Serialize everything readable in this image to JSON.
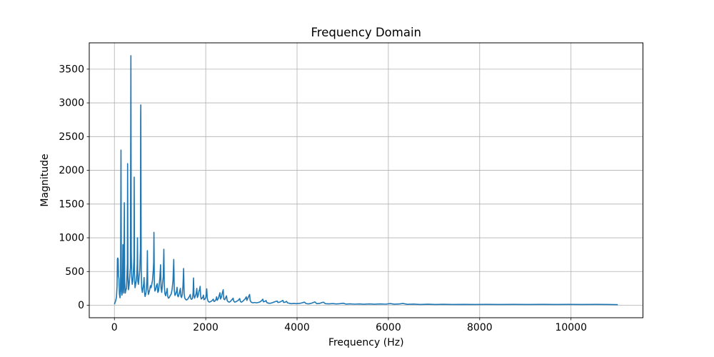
{
  "figure": {
    "title": "Frequency Domain"
  },
  "chart_data": {
    "type": "line",
    "title": "Frequency Domain",
    "xlabel": "Frequency (Hz)",
    "ylabel": "Magnitude",
    "legend": null,
    "grid": true,
    "line_color": "#1f77b4",
    "grid_color": "#b0b0b0",
    "spine_color": "#000000",
    "background_color": "#ffffff",
    "xlim": [
      -551,
      11576
    ],
    "ylim": [
      -185,
      3890
    ],
    "xticks": [
      0,
      2000,
      4000,
      6000,
      8000,
      10000
    ],
    "yticks": [
      0,
      500,
      1000,
      1500,
      2000,
      2500,
      3000,
      3500
    ],
    "x_data_range": [
      0,
      11025
    ],
    "peak_summary": [
      {
        "freq": 144,
        "magnitude": 2300
      },
      {
        "freq": 217,
        "magnitude": 1520
      },
      {
        "freq": 289,
        "magnitude": 2100
      },
      {
        "freq": 361,
        "magnitude": 3700
      },
      {
        "freq": 433,
        "magnitude": 1900
      },
      {
        "freq": 505,
        "magnitude": 1000
      },
      {
        "freq": 578,
        "magnitude": 2970
      },
      {
        "freq": 722,
        "magnitude": 810
      },
      {
        "freq": 866,
        "magnitude": 1080
      },
      {
        "freq": 1083,
        "magnitude": 830
      },
      {
        "freq": 1300,
        "magnitude": 680
      },
      {
        "freq": 1516,
        "magnitude": 545
      },
      {
        "freq": 1733,
        "magnitude": 405
      }
    ],
    "points": [
      [
        0,
        15
      ],
      [
        25,
        60
      ],
      [
        45,
        120
      ],
      [
        58,
        280
      ],
      [
        66,
        690
      ],
      [
        74,
        700
      ],
      [
        82,
        680
      ],
      [
        90,
        430
      ],
      [
        100,
        395
      ],
      [
        110,
        170
      ],
      [
        122,
        110
      ],
      [
        134,
        220
      ],
      [
        144,
        2300
      ],
      [
        153,
        320
      ],
      [
        164,
        150
      ],
      [
        175,
        200
      ],
      [
        186,
        900
      ],
      [
        196,
        320
      ],
      [
        206,
        180
      ],
      [
        217,
        1520
      ],
      [
        226,
        350
      ],
      [
        238,
        180
      ],
      [
        252,
        230
      ],
      [
        266,
        250
      ],
      [
        278,
        480
      ],
      [
        284,
        620
      ],
      [
        289,
        2100
      ],
      [
        297,
        420
      ],
      [
        308,
        230
      ],
      [
        322,
        300
      ],
      [
        336,
        430
      ],
      [
        350,
        560
      ],
      [
        358,
        2760
      ],
      [
        361,
        3700
      ],
      [
        369,
        800
      ],
      [
        378,
        420
      ],
      [
        390,
        310
      ],
      [
        403,
        360
      ],
      [
        417,
        520
      ],
      [
        428,
        700
      ],
      [
        433,
        1900
      ],
      [
        441,
        420
      ],
      [
        452,
        260
      ],
      [
        464,
        310
      ],
      [
        477,
        360
      ],
      [
        492,
        470
      ],
      [
        500,
        620
      ],
      [
        505,
        1000
      ],
      [
        513,
        360
      ],
      [
        526,
        310
      ],
      [
        541,
        420
      ],
      [
        556,
        520
      ],
      [
        570,
        830
      ],
      [
        575,
        2760
      ],
      [
        578,
        2970
      ],
      [
        587,
        520
      ],
      [
        597,
        260
      ],
      [
        612,
        190
      ],
      [
        627,
        260
      ],
      [
        641,
        320
      ],
      [
        650,
        410
      ],
      [
        659,
        190
      ],
      [
        672,
        130
      ],
      [
        687,
        170
      ],
      [
        702,
        260
      ],
      [
        714,
        420
      ],
      [
        722,
        810
      ],
      [
        731,
        260
      ],
      [
        744,
        160
      ],
      [
        758,
        190
      ],
      [
        772,
        230
      ],
      [
        788,
        290
      ],
      [
        803,
        260
      ],
      [
        818,
        310
      ],
      [
        834,
        370
      ],
      [
        852,
        520
      ],
      [
        860,
        640
      ],
      [
        866,
        1080
      ],
      [
        875,
        310
      ],
      [
        887,
        210
      ],
      [
        902,
        230
      ],
      [
        921,
        290
      ],
      [
        932,
        310
      ],
      [
        939,
        320
      ],
      [
        951,
        190
      ],
      [
        966,
        210
      ],
      [
        982,
        310
      ],
      [
        997,
        420
      ],
      [
        1011,
        600
      ],
      [
        1021,
        260
      ],
      [
        1036,
        190
      ],
      [
        1052,
        310
      ],
      [
        1069,
        420
      ],
      [
        1083,
        830
      ],
      [
        1093,
        290
      ],
      [
        1107,
        170
      ],
      [
        1122,
        140
      ],
      [
        1137,
        190
      ],
      [
        1148,
        210
      ],
      [
        1155,
        250
      ],
      [
        1166,
        140
      ],
      [
        1182,
        105
      ],
      [
        1202,
        115
      ],
      [
        1222,
        145
      ],
      [
        1243,
        165
      ],
      [
        1262,
        230
      ],
      [
        1283,
        360
      ],
      [
        1300,
        680
      ],
      [
        1311,
        230
      ],
      [
        1326,
        145
      ],
      [
        1342,
        165
      ],
      [
        1361,
        210
      ],
      [
        1372,
        265
      ],
      [
        1383,
        145
      ],
      [
        1397,
        125
      ],
      [
        1416,
        165
      ],
      [
        1431,
        210
      ],
      [
        1444,
        250
      ],
      [
        1456,
        135
      ],
      [
        1471,
        115
      ],
      [
        1487,
        165
      ],
      [
        1502,
        290
      ],
      [
        1516,
        545
      ],
      [
        1527,
        175
      ],
      [
        1542,
        105
      ],
      [
        1562,
        85
      ],
      [
        1583,
        78
      ],
      [
        1607,
        92
      ],
      [
        1627,
        115
      ],
      [
        1646,
        135
      ],
      [
        1661,
        160
      ],
      [
        1673,
        98
      ],
      [
        1691,
        88
      ],
      [
        1711,
        105
      ],
      [
        1723,
        185
      ],
      [
        1733,
        405
      ],
      [
        1743,
        145
      ],
      [
        1756,
        105
      ],
      [
        1771,
        135
      ],
      [
        1791,
        175
      ],
      [
        1805,
        250
      ],
      [
        1816,
        115
      ],
      [
        1831,
        135
      ],
      [
        1851,
        205
      ],
      [
        1866,
        235
      ],
      [
        1877,
        280
      ],
      [
        1889,
        135
      ],
      [
        1902,
        92
      ],
      [
        1921,
        105
      ],
      [
        1939,
        125
      ],
      [
        1950,
        150
      ],
      [
        1961,
        82
      ],
      [
        1981,
        92
      ],
      [
        2001,
        115
      ],
      [
        2013,
        165
      ],
      [
        2022,
        245
      ],
      [
        2033,
        105
      ],
      [
        2051,
        62
      ],
      [
        2076,
        46
      ],
      [
        2101,
        52
      ],
      [
        2126,
        62
      ],
      [
        2151,
        78
      ],
      [
        2166,
        90
      ],
      [
        2181,
        56
      ],
      [
        2201,
        62
      ],
      [
        2221,
        82
      ],
      [
        2238,
        125
      ],
      [
        2251,
        72
      ],
      [
        2271,
        92
      ],
      [
        2291,
        135
      ],
      [
        2310,
        185
      ],
      [
        2323,
        92
      ],
      [
        2341,
        115
      ],
      [
        2361,
        175
      ],
      [
        2383,
        230
      ],
      [
        2396,
        92
      ],
      [
        2416,
        82
      ],
      [
        2431,
        105
      ],
      [
        2455,
        140
      ],
      [
        2469,
        72
      ],
      [
        2491,
        52
      ],
      [
        2516,
        46
      ],
      [
        2541,
        56
      ],
      [
        2566,
        78
      ],
      [
        2586,
        92
      ],
      [
        2600,
        105
      ],
      [
        2613,
        62
      ],
      [
        2636,
        46
      ],
      [
        2661,
        52
      ],
      [
        2686,
        62
      ],
      [
        2711,
        72
      ],
      [
        2731,
        88
      ],
      [
        2744,
        100
      ],
      [
        2759,
        56
      ],
      [
        2781,
        46
      ],
      [
        2806,
        56
      ],
      [
        2831,
        72
      ],
      [
        2861,
        92
      ],
      [
        2889,
        125
      ],
      [
        2901,
        72
      ],
      [
        2921,
        102
      ],
      [
        2941,
        132
      ],
      [
        2961,
        160
      ],
      [
        2973,
        72
      ],
      [
        2996,
        46
      ],
      [
        3031,
        36
      ],
      [
        3071,
        41
      ],
      [
        3111,
        36
      ],
      [
        3151,
        41
      ],
      [
        3191,
        51
      ],
      [
        3221,
        66
      ],
      [
        3250,
        90
      ],
      [
        3263,
        51
      ],
      [
        3291,
        56
      ],
      [
        3322,
        70
      ],
      [
        3336,
        41
      ],
      [
        3371,
        31
      ],
      [
        3411,
        29
      ],
      [
        3451,
        36
      ],
      [
        3491,
        46
      ],
      [
        3531,
        56
      ],
      [
        3565,
        62
      ],
      [
        3581,
        41
      ],
      [
        3621,
        46
      ],
      [
        3661,
        60
      ],
      [
        3690,
        72
      ],
      [
        3706,
        41
      ],
      [
        3741,
        46
      ],
      [
        3770,
        58
      ],
      [
        3791,
        36
      ],
      [
        3831,
        29
      ],
      [
        3881,
        23
      ],
      [
        3931,
        27
      ],
      [
        3981,
        23
      ],
      [
        4051,
        27
      ],
      [
        4111,
        36
      ],
      [
        4160,
        46
      ],
      [
        4201,
        24
      ],
      [
        4261,
        21
      ],
      [
        4331,
        33
      ],
      [
        4390,
        50
      ],
      [
        4431,
        23
      ],
      [
        4491,
        27
      ],
      [
        4551,
        41
      ],
      [
        4580,
        45
      ],
      [
        4621,
        23
      ],
      [
        4701,
        21
      ],
      [
        4781,
        25
      ],
      [
        4861,
        19
      ],
      [
        4941,
        23
      ],
      [
        5010,
        30
      ],
      [
        5071,
        17
      ],
      [
        5161,
        21
      ],
      [
        5261,
        16
      ],
      [
        5361,
        19
      ],
      [
        5471,
        15
      ],
      [
        5581,
        19
      ],
      [
        5701,
        15
      ],
      [
        5821,
        19
      ],
      [
        5941,
        16
      ],
      [
        6040,
        25
      ],
      [
        6131,
        15
      ],
      [
        6241,
        19
      ],
      [
        6320,
        26
      ],
      [
        6411,
        14
      ],
      [
        6551,
        17
      ],
      [
        6701,
        12
      ],
      [
        6861,
        15
      ],
      [
        7031,
        11
      ],
      [
        7201,
        14
      ],
      [
        7401,
        11
      ],
      [
        7651,
        13
      ],
      [
        7901,
        11
      ],
      [
        8151,
        13
      ],
      [
        8451,
        11
      ],
      [
        8751,
        13
      ],
      [
        9051,
        11
      ],
      [
        9351,
        13
      ],
      [
        9651,
        11
      ],
      [
        9951,
        13
      ],
      [
        10251,
        11
      ],
      [
        10551,
        13
      ],
      [
        10801,
        11
      ],
      [
        11025,
        9
      ]
    ]
  }
}
